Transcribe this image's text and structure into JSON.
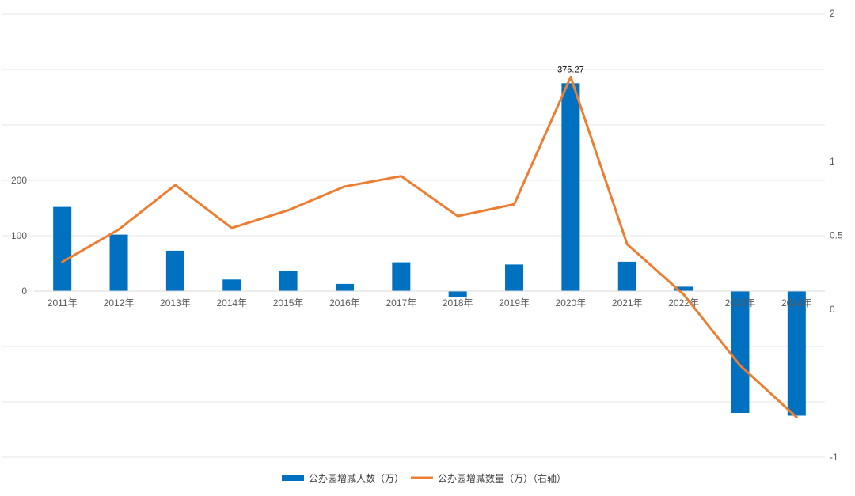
{
  "chart_data": {
    "type": "bar",
    "categories": [
      "2011年",
      "2012年",
      "2013年",
      "2014年",
      "2015年",
      "2016年",
      "2017年",
      "2018年",
      "2019年",
      "2020年",
      "2021年",
      "2022年",
      "2023年",
      "2024年"
    ],
    "series": [
      {
        "name": "公办园增减人数（万）",
        "type": "bar",
        "axis": "left",
        "color": "#0070C0",
        "values": [
          152,
          102,
          73,
          21,
          37,
          13,
          52,
          -11,
          48,
          375.27,
          53,
          8,
          -220,
          -225
        ]
      },
      {
        "name": "公办园增减数量（万）（右轴）",
        "type": "line",
        "axis": "right",
        "color": "#ED7D31",
        "values": [
          0.32,
          0.54,
          0.84,
          0.55,
          0.67,
          0.83,
          0.9,
          0.63,
          0.71,
          1.57,
          0.44,
          0.1,
          -0.38,
          -0.73
        ]
      }
    ],
    "data_labels": [
      {
        "series": 0,
        "index": 9,
        "text": "375.27"
      }
    ],
    "y_left": {
      "visible_ticks": [
        0,
        100,
        200
      ],
      "range": [
        -300,
        500
      ]
    },
    "y_right": {
      "ticks": [
        "2",
        "1",
        "0.5",
        "0",
        "-1"
      ],
      "tick_values": [
        2,
        1,
        0.5,
        0,
        -1
      ],
      "range": [
        -1,
        2
      ]
    },
    "grid": true,
    "legend": "bottom",
    "title": "",
    "xlabel": "",
    "ylabel": ""
  }
}
